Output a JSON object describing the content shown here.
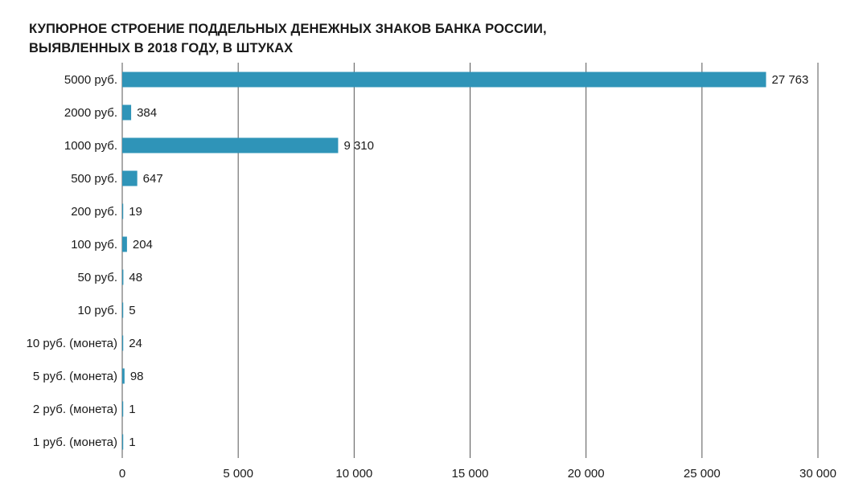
{
  "chart_data": {
    "type": "bar",
    "orientation": "horizontal",
    "title_lines": [
      "КУПЮРНОЕ СТРОЕНИЕ ПОДДЕЛЬНЫХ ДЕНЕЖНЫХ ЗНАКОВ БАНКА РОССИИ,",
      "ВЫЯВЛЕННЫХ В 2018 ГОДУ, В ШТУКАХ"
    ],
    "categories": [
      "5000 руб.",
      "2000 руб.",
      "1000 руб.",
      "500 руб.",
      "200 руб.",
      "100 руб.",
      "50 руб.",
      "10 руб.",
      "10 руб. (монета)",
      "5 руб. (монета)",
      "2 руб. (монета)",
      "1 руб. (монета)"
    ],
    "values": [
      27763,
      384,
      9310,
      647,
      19,
      204,
      48,
      5,
      24,
      98,
      1,
      1
    ],
    "value_labels": [
      "27 763",
      "384",
      "9 310",
      "647",
      "19",
      "204",
      "48",
      "5",
      "24",
      "98",
      "1",
      "1"
    ],
    "xlim": [
      0,
      30000
    ],
    "x_ticks": [
      0,
      5000,
      10000,
      15000,
      20000,
      25000,
      30000
    ],
    "x_tick_labels": [
      "0",
      "5 000",
      "10 000",
      "15 000",
      "20 000",
      "25 000",
      "30 000"
    ],
    "xlabel": "",
    "ylabel": "",
    "grid": "vertical",
    "legend": "none",
    "bar_color": "#2f94b8",
    "grid_color": "#555555"
  }
}
